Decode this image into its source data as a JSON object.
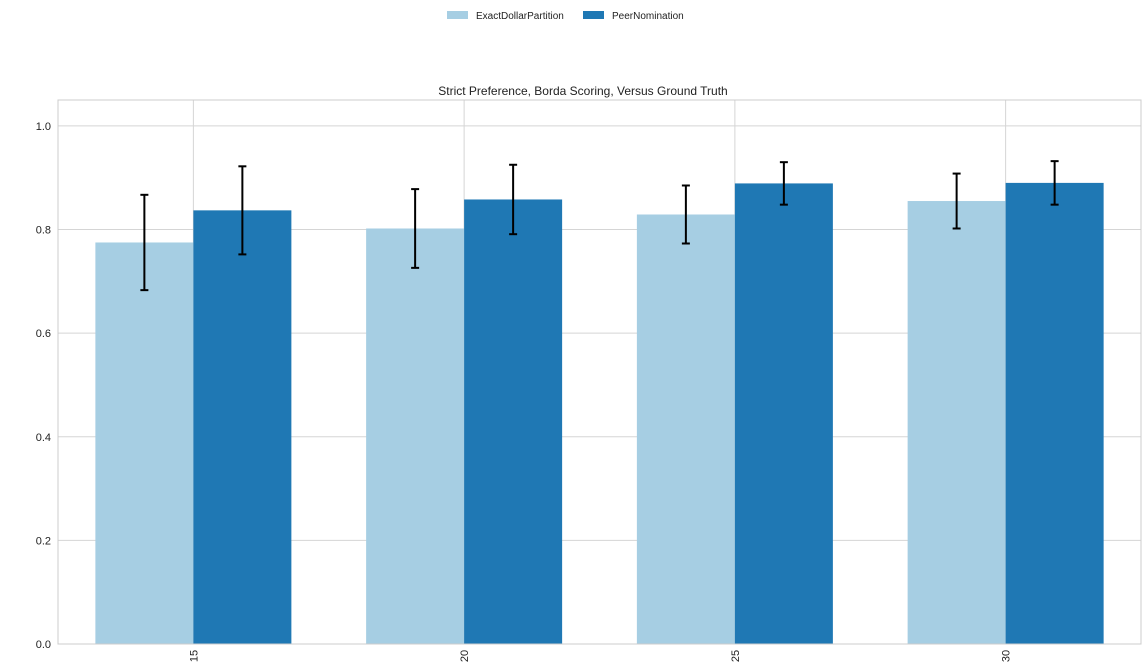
{
  "chart_data": {
    "type": "bar",
    "title": "Strict Preference, Borda Scoring, Versus Ground Truth",
    "xlabel": "",
    "ylabel": "",
    "categories": [
      "15",
      "20",
      "25",
      "30"
    ],
    "ylim": [
      0,
      1.05
    ],
    "yticks": [
      "0.0",
      "0.2",
      "0.4",
      "0.6",
      "0.8",
      "1.0"
    ],
    "grid": true,
    "legend_position": "top-center",
    "series": [
      {
        "name": "ExactDollarPartition",
        "color": "#a6cee3",
        "values": [
          0.775,
          0.802,
          0.829,
          0.855
        ],
        "errors": [
          0.092,
          0.076,
          0.056,
          0.053
        ]
      },
      {
        "name": "PeerNomination",
        "color": "#1f78b4",
        "values": [
          0.837,
          0.858,
          0.889,
          0.89
        ],
        "errors": [
          0.085,
          0.067,
          0.041,
          0.042
        ]
      }
    ]
  }
}
